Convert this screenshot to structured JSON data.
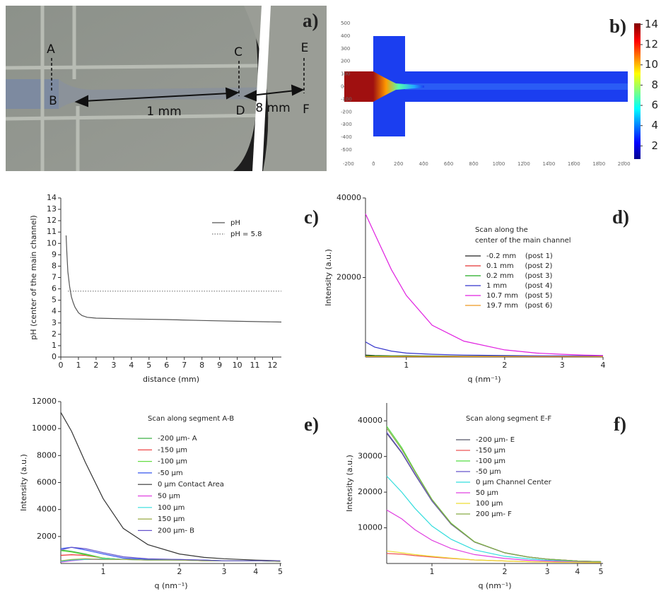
{
  "panel_a": {
    "label": "a)",
    "points": [
      "A",
      "B",
      "C",
      "D",
      "E",
      "F"
    ],
    "distances": [
      "1 mm",
      "8 mm"
    ]
  },
  "chart_data": [
    {
      "type": "heatmap",
      "label": "b)",
      "xlim": [
        -250,
        2030
      ],
      "xticks": [
        -200,
        0,
        200,
        400,
        600,
        800,
        1000,
        1200,
        1400,
        1600,
        1800,
        2000
      ],
      "ylim": [
        -590,
        590
      ],
      "yticks": [
        -500,
        -400,
        -300,
        -200,
        -100,
        0,
        100,
        200,
        300,
        400,
        500
      ],
      "colorbar": {
        "lim": [
          0.7,
          14.1
        ],
        "ticks": [
          2,
          4,
          6,
          8,
          10,
          12,
          14
        ]
      }
    },
    {
      "type": "line",
      "label": "c)",
      "xlabel": "distance (mm)",
      "ylabel": "pH (center of the main channel)",
      "xlim": [
        0,
        12.5
      ],
      "xticks": [
        0,
        1,
        2,
        3,
        4,
        5,
        6,
        7,
        8,
        9,
        10,
        11,
        12
      ],
      "ylim": [
        0,
        14
      ],
      "yticks": [
        0,
        1,
        2,
        3,
        4,
        5,
        6,
        7,
        8,
        9,
        10,
        11,
        12,
        13,
        14
      ],
      "series": [
        {
          "name": "pH",
          "color": "#555555",
          "style": "solid",
          "x": [
            0.3,
            0.35,
            0.4,
            0.5,
            0.6,
            0.7,
            0.8,
            1,
            1.2,
            1.5,
            2,
            4,
            6,
            8,
            10,
            12.5
          ],
          "values": [
            10.7,
            9,
            7.5,
            6.2,
            5.3,
            4.8,
            4.4,
            3.9,
            3.65,
            3.5,
            3.42,
            3.35,
            3.3,
            3.22,
            3.15,
            3.08
          ]
        },
        {
          "name": "pH = 5.8",
          "color": "#777777",
          "style": "dotted",
          "x": [
            0.4,
            12.5
          ],
          "values": [
            5.8,
            5.8
          ]
        }
      ]
    },
    {
      "type": "line",
      "label": "d)",
      "xlabel": "q (nm⁻¹)",
      "ylabel": "Intensity (a.u.)",
      "xlog": true,
      "xlim": [
        0.75,
        4
      ],
      "xticks": [
        1,
        2,
        3,
        4
      ],
      "ylim": [
        0,
        40000
      ],
      "yticks": [
        20000,
        40000
      ],
      "legend_title": [
        "Scan along the",
        "center of the main channel"
      ],
      "x": [
        0.75,
        0.8,
        0.9,
        1,
        1.2,
        1.5,
        2,
        2.5,
        3,
        3.5,
        4
      ],
      "series": [
        {
          "name": "-0.2 mm    (post 1)",
          "color": "#222222",
          "values": [
            500,
            400,
            300,
            300,
            250,
            200,
            200,
            150,
            150,
            150,
            150
          ]
        },
        {
          "name": "0.1 mm     (post 2)",
          "color": "#e33333",
          "values": [
            200,
            200,
            200,
            150,
            150,
            150,
            100,
            100,
            100,
            100,
            100
          ]
        },
        {
          "name": "0.2 mm     (post 3)",
          "color": "#22aa22",
          "values": [
            300,
            300,
            250,
            200,
            200,
            150,
            150,
            150,
            100,
            100,
            100
          ]
        },
        {
          "name": "1 mm        (post 4)",
          "color": "#3333cc",
          "values": [
            3800,
            2500,
            1500,
            1000,
            700,
            500,
            400,
            300,
            300,
            300,
            300
          ]
        },
        {
          "name": "10.7 mm   (post 5)",
          "color": "#e020e0",
          "values": [
            36000,
            31000,
            22000,
            15500,
            8000,
            4000,
            1800,
            1000,
            700,
            500,
            400
          ]
        },
        {
          "name": "19.7 mm   (post 6)",
          "color": "#ee9922",
          "values": [
            100,
            100,
            100,
            100,
            100,
            100,
            100,
            100,
            100,
            100,
            100
          ]
        }
      ]
    },
    {
      "type": "line",
      "label": "e)",
      "xlabel": "q (nm⁻¹)",
      "ylabel": "Intensity (a.u.)",
      "xlog": true,
      "xlim": [
        0.68,
        5.05
      ],
      "xticks": [
        1,
        2,
        3,
        4,
        5
      ],
      "ylim": [
        0,
        12000
      ],
      "yticks": [
        2000,
        4000,
        6000,
        8000,
        10000,
        12000
      ],
      "legend_title": [
        "Scan along segment A-B"
      ],
      "x": [
        0.68,
        0.75,
        0.85,
        1,
        1.2,
        1.5,
        2,
        2.5,
        3,
        4,
        5
      ],
      "series": [
        {
          "name": "-200 µm- A",
          "color": "#3cb043",
          "values": [
            1000,
            900,
            700,
            400,
            300,
            300,
            250,
            250,
            200,
            200,
            200
          ]
        },
        {
          "name": "-150 µm",
          "color": "#ee3333",
          "values": [
            600,
            650,
            600,
            400,
            300,
            300,
            250,
            200,
            200,
            200,
            200
          ]
        },
        {
          "name": "-100 µm",
          "color": "#66dd44",
          "values": [
            950,
            850,
            650,
            400,
            300,
            280,
            250,
            220,
            200,
            200,
            200
          ]
        },
        {
          "name": "-50 µm",
          "color": "#3355ee",
          "values": [
            1100,
            1200,
            1000,
            700,
            400,
            300,
            300,
            250,
            200,
            200,
            200
          ]
        },
        {
          "name": "0 µm Contact Area",
          "color": "#333333",
          "values": [
            11200,
            9800,
            7500,
            4800,
            2600,
            1400,
            700,
            450,
            350,
            250,
            200
          ]
        },
        {
          "name": "50 µm",
          "color": "#e040e0",
          "values": [
            100,
            200,
            300,
            300,
            300,
            250,
            250,
            200,
            200,
            200,
            150
          ]
        },
        {
          "name": "100 µm",
          "color": "#33dddd",
          "values": [
            150,
            250,
            300,
            350,
            300,
            250,
            250,
            200,
            200,
            200,
            150
          ]
        },
        {
          "name": "150 µm",
          "color": "#99aa44",
          "values": [
            200,
            300,
            350,
            300,
            300,
            250,
            250,
            200,
            200,
            200,
            150
          ]
        },
        {
          "name": "200 µm- B",
          "color": "#6655cc",
          "values": [
            1000,
            1200,
            1100,
            800,
            500,
            350,
            300,
            250,
            200,
            200,
            200
          ]
        }
      ]
    },
    {
      "type": "line",
      "label": "f)",
      "xlabel": "q (nm⁻¹)",
      "ylabel": "Intensity (a.u.)",
      "xlog": true,
      "xlim": [
        0.65,
        5.1
      ],
      "xticks": [
        1,
        2,
        3,
        4,
        5
      ],
      "ylim": [
        0,
        45000
      ],
      "yticks": [
        10000,
        20000,
        30000,
        40000
      ],
      "legend_title": [
        "Scan along segment E-F"
      ],
      "x": [
        0.65,
        0.75,
        0.85,
        1,
        1.2,
        1.5,
        2,
        2.5,
        3,
        4,
        5
      ],
      "series": [
        {
          "name": "-200 µm- E",
          "color": "#555566",
          "values": [
            36500,
            31000,
            25000,
            17500,
            11000,
            6000,
            3000,
            1800,
            1200,
            700,
            500
          ]
        },
        {
          "name": "-150 µm",
          "color": "#ee5555",
          "values": [
            2800,
            2600,
            2200,
            1800,
            1400,
            1000,
            700,
            500,
            400,
            300,
            250
          ]
        },
        {
          "name": "-100 µm",
          "color": "#55dd44",
          "values": [
            38500,
            32500,
            26000,
            18000,
            11300,
            6100,
            3000,
            1800,
            1200,
            700,
            500
          ]
        },
        {
          "name": "-50 µm",
          "color": "#6655cc",
          "values": [
            36800,
            31200,
            25200,
            17600,
            11100,
            6000,
            3000,
            1800,
            1200,
            700,
            500
          ]
        },
        {
          "name": "0 µm Channel Center",
          "color": "#33dddd",
          "values": [
            24500,
            20000,
            15500,
            10500,
            6800,
            3800,
            2000,
            1300,
            900,
            600,
            400
          ]
        },
        {
          "name": "50 µm",
          "color": "#e040e0",
          "values": [
            15000,
            12500,
            9500,
            6500,
            4200,
            2500,
            1400,
            900,
            700,
            400,
            300
          ]
        },
        {
          "name": "100 µm",
          "color": "#eedd33",
          "values": [
            3500,
            3000,
            2500,
            2000,
            1500,
            1000,
            700,
            500,
            400,
            300,
            250
          ]
        },
        {
          "name": "200 µm- F",
          "color": "#88aa44",
          "values": [
            38000,
            32000,
            25800,
            17900,
            11200,
            6050,
            3000,
            1800,
            1200,
            700,
            500
          ]
        }
      ]
    }
  ]
}
